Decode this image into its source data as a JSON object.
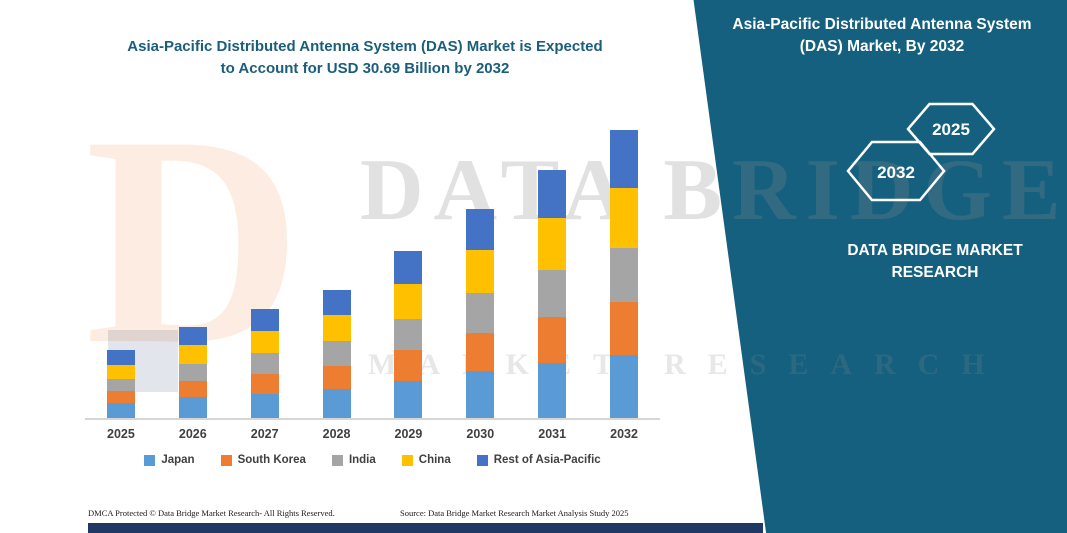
{
  "chart_data": {
    "type": "bar",
    "stacked": true,
    "title": "Asia-Pacific Distributed Antenna System (DAS) Market is Expected to Account for USD 30.69 Billion by 2032",
    "unit": "USD Billion",
    "categories": [
      "2025",
      "2026",
      "2027",
      "2028",
      "2029",
      "2030",
      "2031",
      "2032"
    ],
    "series": [
      {
        "name": "Japan",
        "color": "#5B9BD5",
        "values": [
          1.6,
          2.2,
          2.6,
          3.1,
          4.0,
          5.0,
          5.9,
          6.7
        ]
      },
      {
        "name": "South Korea",
        "color": "#ED7D31",
        "values": [
          1.3,
          1.8,
          2.1,
          2.5,
          3.3,
          4.1,
          4.9,
          5.7
        ]
      },
      {
        "name": "India",
        "color": "#A5A5A5",
        "values": [
          1.3,
          1.8,
          2.2,
          2.6,
          3.3,
          4.2,
          5.0,
          5.7
        ]
      },
      {
        "name": "China",
        "color": "#FFC000",
        "values": [
          1.5,
          2.0,
          2.4,
          2.8,
          3.7,
          4.6,
          5.5,
          6.4
        ]
      },
      {
        "name": "Rest of Asia-Pacific",
        "color": "#4472C4",
        "values": [
          1.5,
          1.9,
          2.3,
          2.7,
          3.5,
          4.4,
          5.2,
          6.19
        ]
      }
    ],
    "totals_estimated": [
      7.2,
      9.7,
      11.6,
      13.7,
      17.8,
      22.3,
      26.5,
      30.69
    ],
    "ylim": [
      0,
      32
    ],
    "grid": false,
    "legend_position": "bottom",
    "xlabel": "",
    "ylabel": ""
  },
  "side_panel": {
    "title": "Asia-Pacific Distributed Antenna System (DAS) Market, By 2032",
    "hexagon_back_label": "2032",
    "hexagon_front_label": "2025",
    "brand_line1": "DATA BRIDGE MARKET",
    "brand_line2": "RESEARCH",
    "panel_color": "#15607E"
  },
  "watermark": {
    "logo_letter": "D",
    "line1": "DATA BRIDGE",
    "line2": "MARKET RESEARCH"
  },
  "footer": {
    "dmca": "DMCA Protected © Data Bridge Market Research-  All Rights Reserved.",
    "source": "Source: Data Bridge Market Research  Market Analysis Study 2025"
  }
}
